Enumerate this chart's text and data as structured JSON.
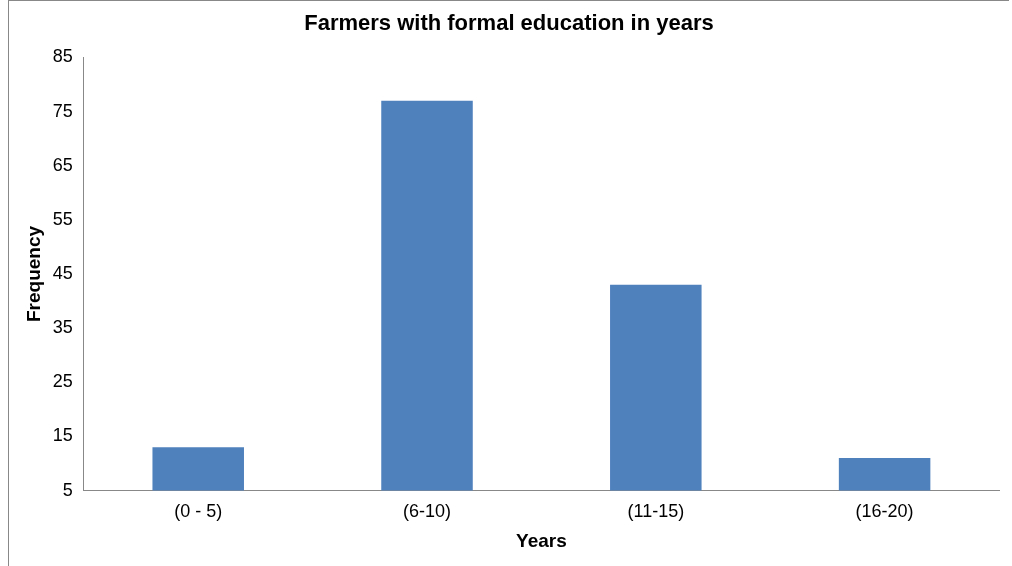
{
  "chart_data": {
    "type": "bar",
    "title": "Farmers with formal education in years",
    "xlabel": "Years",
    "ylabel": "Frequency",
    "categories": [
      "(0 - 5)",
      "(6-10)",
      "(11-15)",
      "(16-20)"
    ],
    "values": [
      13,
      77,
      43,
      11
    ],
    "color": "#4f81bd",
    "ylim": [
      5,
      85
    ],
    "yticks": [
      5,
      15,
      25,
      35,
      45,
      55,
      65,
      75,
      85
    ],
    "grid": false,
    "legend": false
  }
}
